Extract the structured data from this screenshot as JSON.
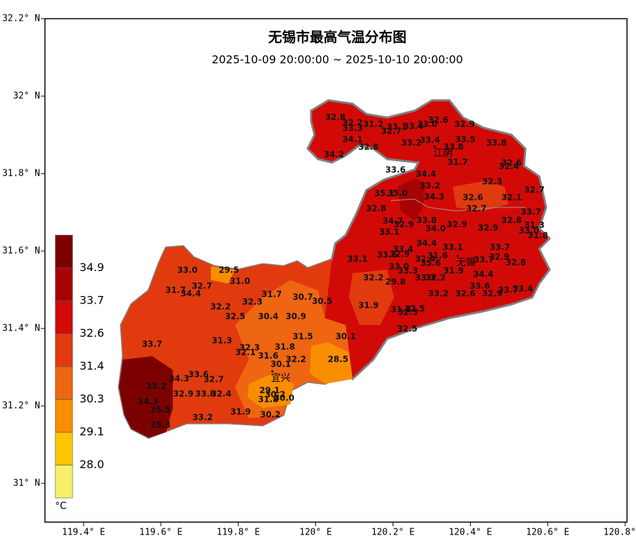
{
  "chart_data": {
    "type": "map",
    "title": "无锡市最高气温分布图",
    "subtitle": "2025-10-09 20:00:00 ~ 2025-10-10 20:00:00",
    "xlim": [
      119.3,
      120.805
    ],
    "ylim": [
      30.9,
      32.2
    ],
    "xticks": [
      {
        "value": 119.4,
        "label": "119.4° E"
      },
      {
        "value": 119.6,
        "label": "119.6° E"
      },
      {
        "value": 119.8,
        "label": "119.8° E"
      },
      {
        "value": 120,
        "label": "120° E"
      },
      {
        "value": 120.2,
        "label": "120.2° E"
      },
      {
        "value": 120.4,
        "label": "120.4° E"
      },
      {
        "value": 120.6,
        "label": "120.6° E"
      },
      {
        "value": 120.8,
        "label": "120.8° E"
      }
    ],
    "yticks": [
      {
        "value": 32.2,
        "label": "32.2° N"
      },
      {
        "value": 32,
        "label": "32° N"
      },
      {
        "value": 31.8,
        "label": "31.8° N"
      },
      {
        "value": 31.6,
        "label": "31.6° N"
      },
      {
        "value": 31.4,
        "label": "31.4° N"
      },
      {
        "value": 31.2,
        "label": "31.2° N"
      },
      {
        "value": 31,
        "label": "31° N"
      }
    ],
    "cities": [
      "江阴",
      "无锡",
      "宜兴"
    ],
    "legend": {
      "unit": "°C",
      "levels": [
        {
          "value": 28,
          "label": "28.0"
        },
        {
          "value": 29.1,
          "label": "29.1"
        },
        {
          "value": 30.3,
          "label": "30.3"
        },
        {
          "value": 31.4,
          "label": "31.4"
        },
        {
          "value": 32.6,
          "label": "32.6"
        },
        {
          "value": 33.7,
          "label": "33.7"
        },
        {
          "value": 34.9,
          "label": "34.9"
        }
      ],
      "colors": [
        "#f5ef6a",
        "#fcc500",
        "#f88e00",
        "#ee6512",
        "#e23a0f",
        "#d20a07",
        "#a80303",
        "#7d0000"
      ]
    },
    "values": [
      32.8,
      32.2,
      33.3,
      31.2,
      32.7,
      33.1,
      33.4,
      33.0,
      32.6,
      32.9,
      34.1,
      32.8,
      34.2,
      33.2,
      33.4,
      33.8,
      33.5,
      33.8,
      31.7,
      32.6,
      32.4,
      33.6,
      34.4,
      33.2,
      35.1,
      35.0,
      34.3,
      32.6,
      32.3,
      32.1,
      32.7,
      32.8,
      32.7,
      33.7,
      32.8,
      31.3,
      33.0,
      31.8,
      34.7,
      32.9,
      33.8,
      34.0,
      32.9,
      32.9,
      33.1,
      34.4,
      33.4,
      33.6,
      32.9,
      33.1,
      33.7,
      32.9,
      33.1,
      32.4,
      31.6,
      35.6,
      33.7,
      32.8,
      33.0,
      33.3,
      31.9,
      34.4,
      32.2,
      29.8,
      33.3,
      32.2,
      33.6,
      33.7,
      33.4,
      33.2,
      32.6,
      32.9,
      31.9,
      31.8,
      32.5,
      32.3,
      32.5,
      33.0,
      29.5,
      31.0,
      32.7,
      31.7,
      34.4,
      31.7,
      30.7,
      30.5,
      32.2,
      32.3,
      32.5,
      30.4,
      30.9,
      33.7,
      31.3,
      31.5,
      30.1,
      32.3,
      31.8,
      32.1,
      31.6,
      30.1,
      32.2,
      28.5,
      34.3,
      33.6,
      32.7,
      35.2,
      32.9,
      33.8,
      32.4,
      29.1,
      30.2,
      31.8,
      30.0,
      34.3,
      35.5,
      31.9,
      30.2,
      33.2,
      35.3
    ],
    "value_labels": [
      "32.8",
      "32.2",
      "33.3",
      "31.2",
      "32.7",
      "33.1",
      "33.4",
      "33.0",
      "32.6",
      "32.9",
      "34.1",
      "32.8",
      "34.2",
      "33.2",
      "33.4",
      "33.8",
      "33.5",
      "33.8",
      "31.7",
      "32.6",
      "32.4",
      "33.6",
      "34.4",
      "33.2",
      "35.1",
      "35.0",
      "34.3",
      "32.6",
      "32.3",
      "32.1",
      "32.7",
      "32.8",
      "32.7",
      "33.7",
      "32.8",
      "31.3",
      "33.0",
      "31.8",
      "34.7",
      "32.9",
      "33.8",
      "34.0",
      "32.9",
      "32.9",
      "33.1",
      "34.4",
      "33.4",
      "33.6",
      "32.9",
      "33.1",
      "33.7",
      "32.9",
      "33.1",
      "32.4",
      "31.6",
      "35.6",
      "33.7",
      "32.8",
      "33.0",
      "33.3",
      "31.9",
      "34.4",
      "32.2",
      "29.8",
      "33.3",
      "32.2",
      "33.6",
      "33.7",
      "33.4",
      "33.2",
      "32.6",
      "32.9",
      "31.9",
      "31.8",
      "32.5",
      "32.3",
      "32.5",
      "33.0",
      "29.5",
      "31.0",
      "32.7",
      "31.7",
      "34.4",
      "31.7",
      "30.7",
      "30.5",
      "32.2",
      "32.3",
      "32.5",
      "30.4",
      "30.9",
      "33.7",
      "31.3",
      "31.5",
      "30.1",
      "32.3",
      "31.8",
      "32.1",
      "31.6",
      "30.1",
      "32.2",
      "28.5",
      "34.3",
      "33.6",
      "32.7",
      "35.2",
      "32.9",
      "33.8",
      "32.4",
      "29.1",
      "30.2",
      "31.8",
      "30.0",
      "34.3",
      "35.5",
      "31.9",
      "30.2",
      "33.2",
      "35.3"
    ]
  }
}
